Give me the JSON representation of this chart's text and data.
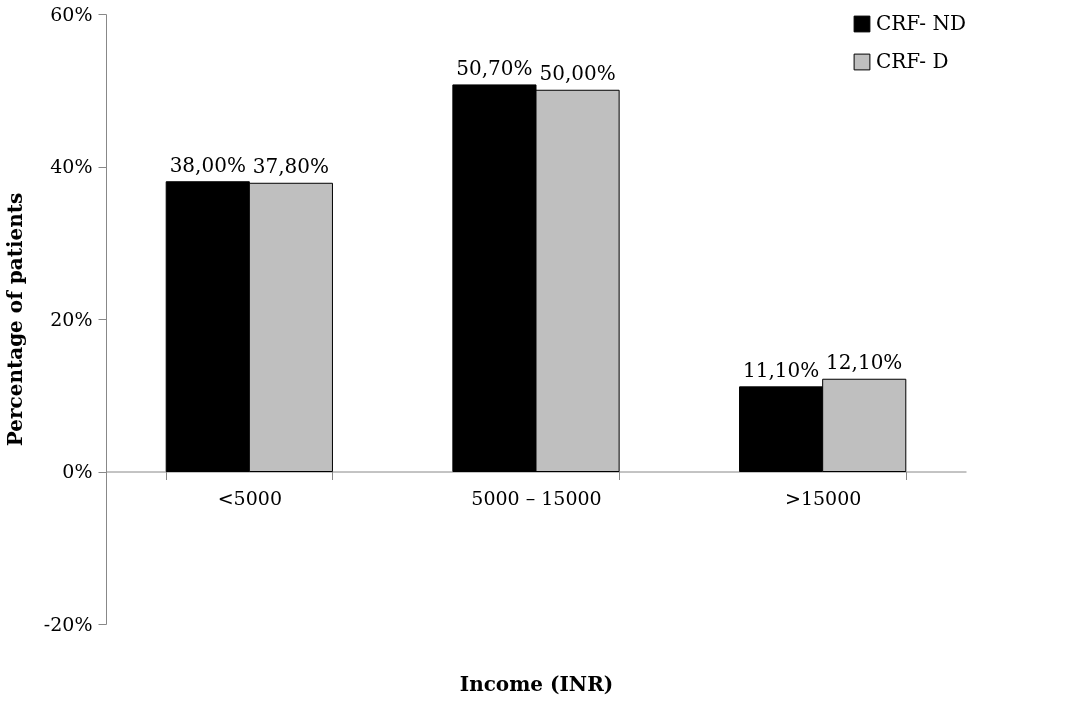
{
  "chart_data": {
    "type": "bar",
    "xlabel": "Income (INR)",
    "ylabel": "Percentage of patients",
    "categories": [
      "<5000",
      "5000 – 15000",
      ">15000"
    ],
    "series": [
      {
        "name": "CRF- ND",
        "color": "#000000",
        "values": [
          38.0,
          50.7,
          11.1
        ],
        "value_labels": [
          "38,00%",
          "50,70%",
          "11,10%"
        ]
      },
      {
        "name": "CRF- D",
        "color": "#bfbfbf",
        "values": [
          37.8,
          50.0,
          12.1
        ],
        "value_labels": [
          "37,80%",
          "50,00%",
          "12,10%"
        ]
      }
    ],
    "ylim": [
      -20,
      60
    ],
    "yticks": [
      {
        "value": -20,
        "label": "-20%"
      },
      {
        "value": 0,
        "label": "0%"
      },
      {
        "value": 20,
        "label": "20%"
      },
      {
        "value": 40,
        "label": "40%"
      },
      {
        "value": 60,
        "label": "60%"
      }
    ],
    "legend": "top right",
    "grid": false
  }
}
